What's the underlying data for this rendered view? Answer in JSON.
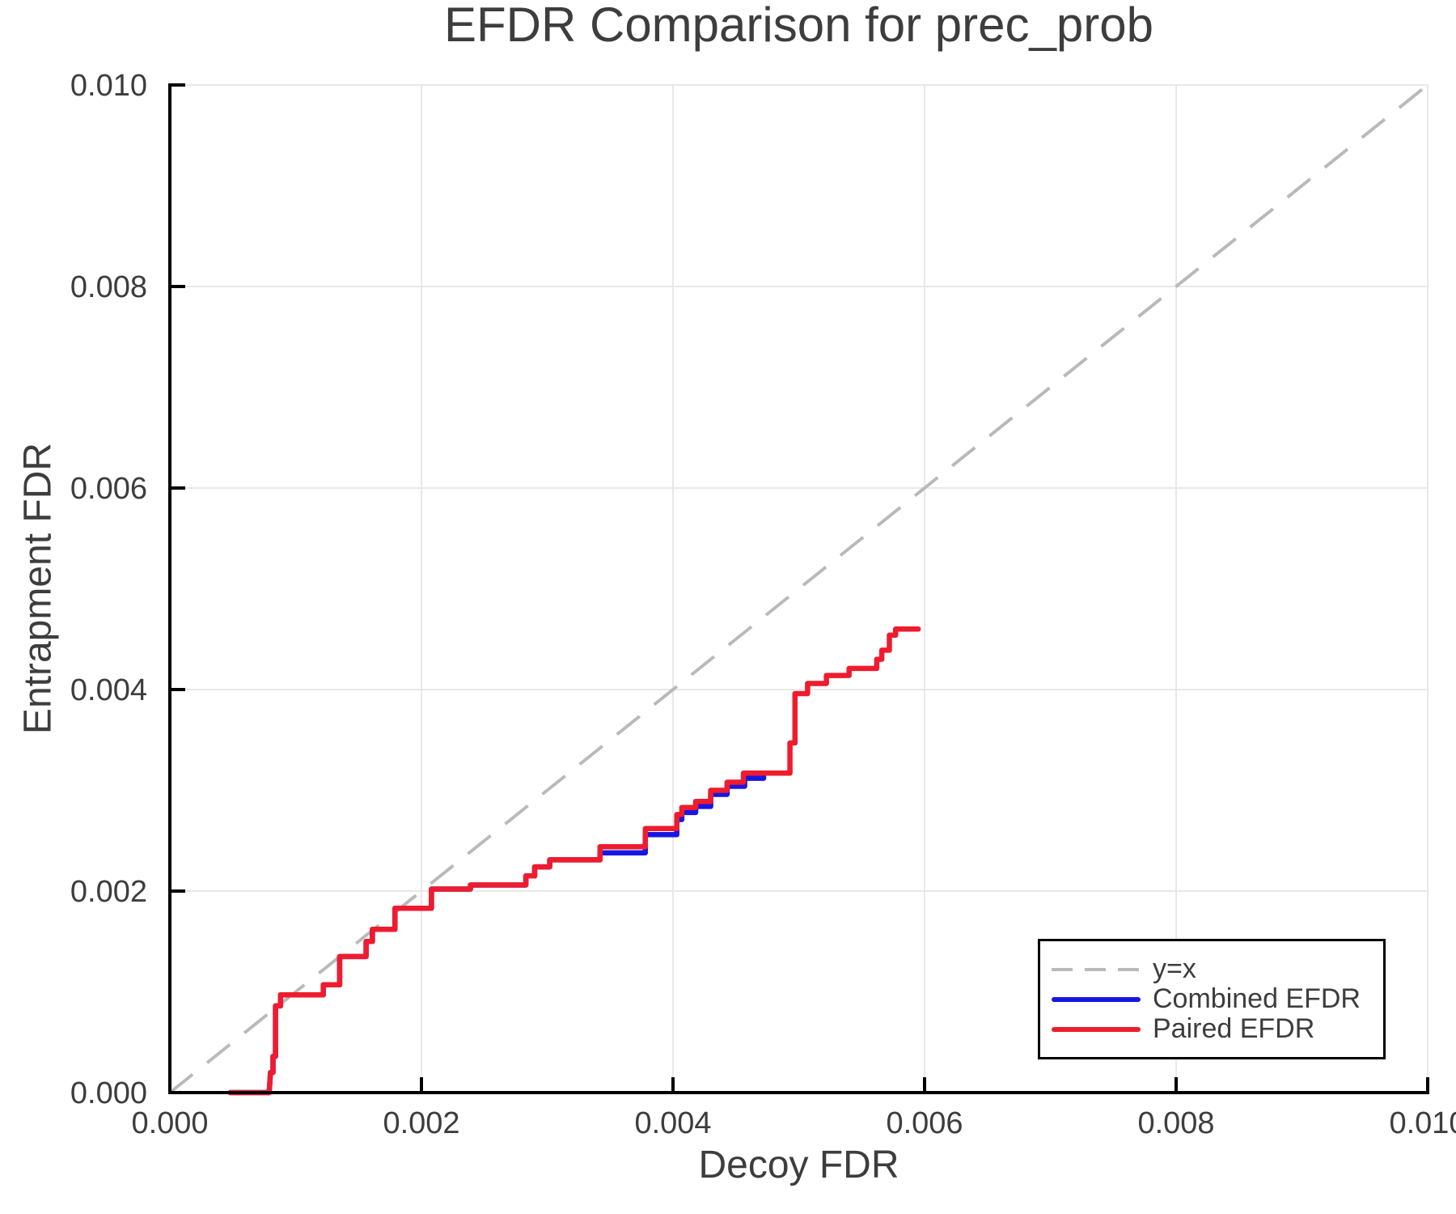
{
  "chart_data": {
    "type": "line",
    "title": "EFDR Comparison for prec_prob",
    "xlabel": "Decoy FDR",
    "ylabel": "Entrapment FDR",
    "xlim": [
      0,
      0.01
    ],
    "ylim": [
      0,
      0.01
    ],
    "xticks": [
      "0.000",
      "0.002",
      "0.004",
      "0.006",
      "0.008",
      "0.010"
    ],
    "yticks": [
      "0.000",
      "0.002",
      "0.004",
      "0.006",
      "0.008",
      "0.010"
    ],
    "grid": true,
    "grid_color": "#e8e8e8",
    "axis_color": "#000000",
    "text_color": "#3d3d3d",
    "legend_position": "lower-right",
    "reference_line": {
      "label": "y=x",
      "style": "dashed",
      "color": "#b9b9b9",
      "from": [
        0,
        0
      ],
      "to": [
        0.01,
        0.01
      ]
    },
    "series": [
      {
        "name": "Combined EFDR",
        "color": "#1717e0",
        "points": [
          [
            0.00048,
            0
          ],
          [
            0.00079,
            0
          ],
          [
            0.0008,
            0.0002
          ],
          [
            0.00082,
            0.0002
          ],
          [
            0.00082,
            0.00036
          ],
          [
            0.00084,
            0.00036
          ],
          [
            0.00084,
            0.00086
          ],
          [
            0.00088,
            0.00086
          ],
          [
            0.00088,
            0.00097
          ],
          [
            0.00122,
            0.00097
          ],
          [
            0.00122,
            0.00107
          ],
          [
            0.00135,
            0.00107
          ],
          [
            0.00135,
            0.00135
          ],
          [
            0.00156,
            0.00135
          ],
          [
            0.00156,
            0.0015
          ],
          [
            0.00161,
            0.0015
          ],
          [
            0.00161,
            0.00162
          ],
          [
            0.00179,
            0.00162
          ],
          [
            0.00179,
            0.00183
          ],
          [
            0.00208,
            0.00183
          ],
          [
            0.00208,
            0.00202
          ],
          [
            0.00239,
            0.00202
          ],
          [
            0.00239,
            0.00206
          ],
          [
            0.00283,
            0.00206
          ],
          [
            0.00283,
            0.00215
          ],
          [
            0.0029,
            0.00215
          ],
          [
            0.0029,
            0.00224
          ],
          [
            0.00302,
            0.00224
          ],
          [
            0.00302,
            0.00231
          ],
          [
            0.00342,
            0.00231
          ],
          [
            0.00342,
            0.00238
          ],
          [
            0.00378,
            0.00238
          ],
          [
            0.00378,
            0.00256
          ],
          [
            0.00403,
            0.00256
          ],
          [
            0.00403,
            0.00271
          ],
          [
            0.00407,
            0.00271
          ],
          [
            0.00407,
            0.00278
          ],
          [
            0.00418,
            0.00278
          ],
          [
            0.00418,
            0.00284
          ],
          [
            0.0043,
            0.00284
          ],
          [
            0.0043,
            0.00296
          ],
          [
            0.00443,
            0.00296
          ],
          [
            0.00443,
            0.00304
          ],
          [
            0.00457,
            0.00304
          ],
          [
            0.00457,
            0.00312
          ],
          [
            0.00472,
            0.00312
          ],
          [
            0.00472,
            0.00317
          ],
          [
            0.00478,
            0.00317
          ]
        ]
      },
      {
        "name": "Paired EFDR",
        "color": "#ee1c2e",
        "points": [
          [
            0.00048,
            0
          ],
          [
            0.00079,
            0
          ],
          [
            0.0008,
            0.0002
          ],
          [
            0.00082,
            0.0002
          ],
          [
            0.00082,
            0.00036
          ],
          [
            0.00084,
            0.00036
          ],
          [
            0.00084,
            0.00086
          ],
          [
            0.00088,
            0.00086
          ],
          [
            0.00088,
            0.00097
          ],
          [
            0.00122,
            0.00097
          ],
          [
            0.00122,
            0.00107
          ],
          [
            0.00135,
            0.00107
          ],
          [
            0.00135,
            0.00135
          ],
          [
            0.00156,
            0.00135
          ],
          [
            0.00156,
            0.0015
          ],
          [
            0.00161,
            0.0015
          ],
          [
            0.00161,
            0.00162
          ],
          [
            0.00179,
            0.00162
          ],
          [
            0.00179,
            0.00183
          ],
          [
            0.00208,
            0.00183
          ],
          [
            0.00208,
            0.00202
          ],
          [
            0.00239,
            0.00202
          ],
          [
            0.00239,
            0.00206
          ],
          [
            0.00283,
            0.00206
          ],
          [
            0.00283,
            0.00215
          ],
          [
            0.0029,
            0.00215
          ],
          [
            0.0029,
            0.00224
          ],
          [
            0.00302,
            0.00224
          ],
          [
            0.00302,
            0.00231
          ],
          [
            0.00342,
            0.00231
          ],
          [
            0.00342,
            0.00244
          ],
          [
            0.00378,
            0.00244
          ],
          [
            0.00378,
            0.00262
          ],
          [
            0.00403,
            0.00262
          ],
          [
            0.00403,
            0.00276
          ],
          [
            0.00407,
            0.00276
          ],
          [
            0.00407,
            0.00283
          ],
          [
            0.00418,
            0.00283
          ],
          [
            0.00418,
            0.00289
          ],
          [
            0.0043,
            0.00289
          ],
          [
            0.0043,
            0.003
          ],
          [
            0.00443,
            0.003
          ],
          [
            0.00443,
            0.00308
          ],
          [
            0.00456,
            0.00308
          ],
          [
            0.00456,
            0.00317
          ],
          [
            0.00493,
            0.00317
          ],
          [
            0.00493,
            0.00347
          ],
          [
            0.00497,
            0.00347
          ],
          [
            0.00497,
            0.00396
          ],
          [
            0.00507,
            0.00396
          ],
          [
            0.00507,
            0.00406
          ],
          [
            0.00522,
            0.00406
          ],
          [
            0.00522,
            0.00414
          ],
          [
            0.0054,
            0.00414
          ],
          [
            0.0054,
            0.00421
          ],
          [
            0.00562,
            0.00421
          ],
          [
            0.00562,
            0.0043
          ],
          [
            0.00566,
            0.0043
          ],
          [
            0.00566,
            0.00439
          ],
          [
            0.00572,
            0.00439
          ],
          [
            0.00572,
            0.00454
          ],
          [
            0.00577,
            0.00454
          ],
          [
            0.00577,
            0.0046
          ],
          [
            0.00595,
            0.0046
          ]
        ]
      }
    ]
  }
}
